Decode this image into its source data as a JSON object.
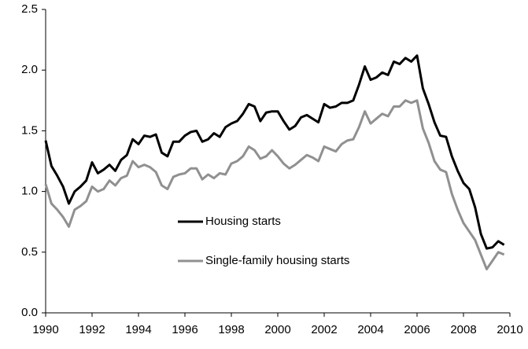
{
  "chart_data": {
    "type": "line",
    "x": [
      1990,
      1990.25,
      1990.5,
      1990.75,
      1991,
      1991.25,
      1991.5,
      1991.75,
      1992,
      1992.25,
      1992.5,
      1992.75,
      1993,
      1993.25,
      1993.5,
      1993.75,
      1994,
      1994.25,
      1994.5,
      1994.75,
      1995,
      1995.25,
      1995.5,
      1995.75,
      1996,
      1996.25,
      1996.5,
      1996.75,
      1997,
      1997.25,
      1997.5,
      1997.75,
      1998,
      1998.25,
      1998.5,
      1998.75,
      1999,
      1999.25,
      1999.5,
      1999.75,
      2000,
      2000.25,
      2000.5,
      2000.75,
      2001,
      2001.25,
      2001.5,
      2001.75,
      2002,
      2002.25,
      2002.5,
      2002.75,
      2003,
      2003.25,
      2003.5,
      2003.75,
      2004,
      2004.25,
      2004.5,
      2004.75,
      2005,
      2005.25,
      2005.5,
      2005.75,
      2006,
      2006.25,
      2006.5,
      2006.75,
      2007,
      2007.25,
      2007.5,
      2007.75,
      2008,
      2008.25,
      2008.5,
      2008.75,
      2009,
      2009.25,
      2009.5,
      2009.75
    ],
    "series": [
      {
        "name": "Housing starts",
        "color": "#000000",
        "values": [
          1.42,
          1.21,
          1.13,
          1.04,
          0.9,
          1.0,
          1.04,
          1.09,
          1.24,
          1.15,
          1.18,
          1.22,
          1.17,
          1.26,
          1.3,
          1.43,
          1.39,
          1.46,
          1.45,
          1.47,
          1.32,
          1.29,
          1.41,
          1.41,
          1.46,
          1.49,
          1.5,
          1.41,
          1.43,
          1.48,
          1.45,
          1.53,
          1.56,
          1.58,
          1.64,
          1.72,
          1.7,
          1.58,
          1.65,
          1.66,
          1.66,
          1.58,
          1.51,
          1.54,
          1.61,
          1.63,
          1.6,
          1.57,
          1.72,
          1.69,
          1.7,
          1.73,
          1.73,
          1.75,
          1.88,
          2.03,
          1.92,
          1.94,
          1.98,
          1.96,
          2.07,
          2.05,
          2.1,
          2.07,
          2.12,
          1.85,
          1.72,
          1.57,
          1.46,
          1.45,
          1.29,
          1.17,
          1.07,
          1.02,
          0.87,
          0.65,
          0.53,
          0.54,
          0.59,
          0.56
        ]
      },
      {
        "name": "Single-family housing starts",
        "color": "#909090",
        "values": [
          1.06,
          0.9,
          0.85,
          0.79,
          0.71,
          0.85,
          0.88,
          0.92,
          1.04,
          1.0,
          1.02,
          1.09,
          1.05,
          1.11,
          1.13,
          1.25,
          1.2,
          1.22,
          1.2,
          1.16,
          1.05,
          1.02,
          1.12,
          1.14,
          1.15,
          1.19,
          1.19,
          1.1,
          1.14,
          1.11,
          1.15,
          1.14,
          1.23,
          1.25,
          1.29,
          1.37,
          1.34,
          1.27,
          1.29,
          1.34,
          1.29,
          1.23,
          1.19,
          1.22,
          1.26,
          1.3,
          1.28,
          1.25,
          1.37,
          1.35,
          1.33,
          1.39,
          1.42,
          1.43,
          1.53,
          1.66,
          1.56,
          1.6,
          1.64,
          1.62,
          1.7,
          1.7,
          1.75,
          1.73,
          1.75,
          1.52,
          1.4,
          1.25,
          1.18,
          1.16,
          0.98,
          0.85,
          0.74,
          0.67,
          0.6,
          0.48,
          0.36,
          0.43,
          0.5,
          0.48
        ]
      }
    ],
    "xlim": [
      1990,
      2010
    ],
    "xticks": [
      1990,
      1992,
      1994,
      1996,
      1998,
      2000,
      2002,
      2004,
      2006,
      2008,
      2010
    ],
    "ylim": [
      0,
      2.5
    ],
    "yticks": [
      {
        "value": 0,
        "label": "0.0"
      },
      {
        "value": 0.5,
        "label": "0.5"
      },
      {
        "value": 1,
        "label": "1.0"
      },
      {
        "value": 1.5,
        "label": "1.5"
      },
      {
        "value": 2,
        "label": "2.0"
      },
      {
        "value": 2.5,
        "label": "2.5"
      }
    ]
  }
}
